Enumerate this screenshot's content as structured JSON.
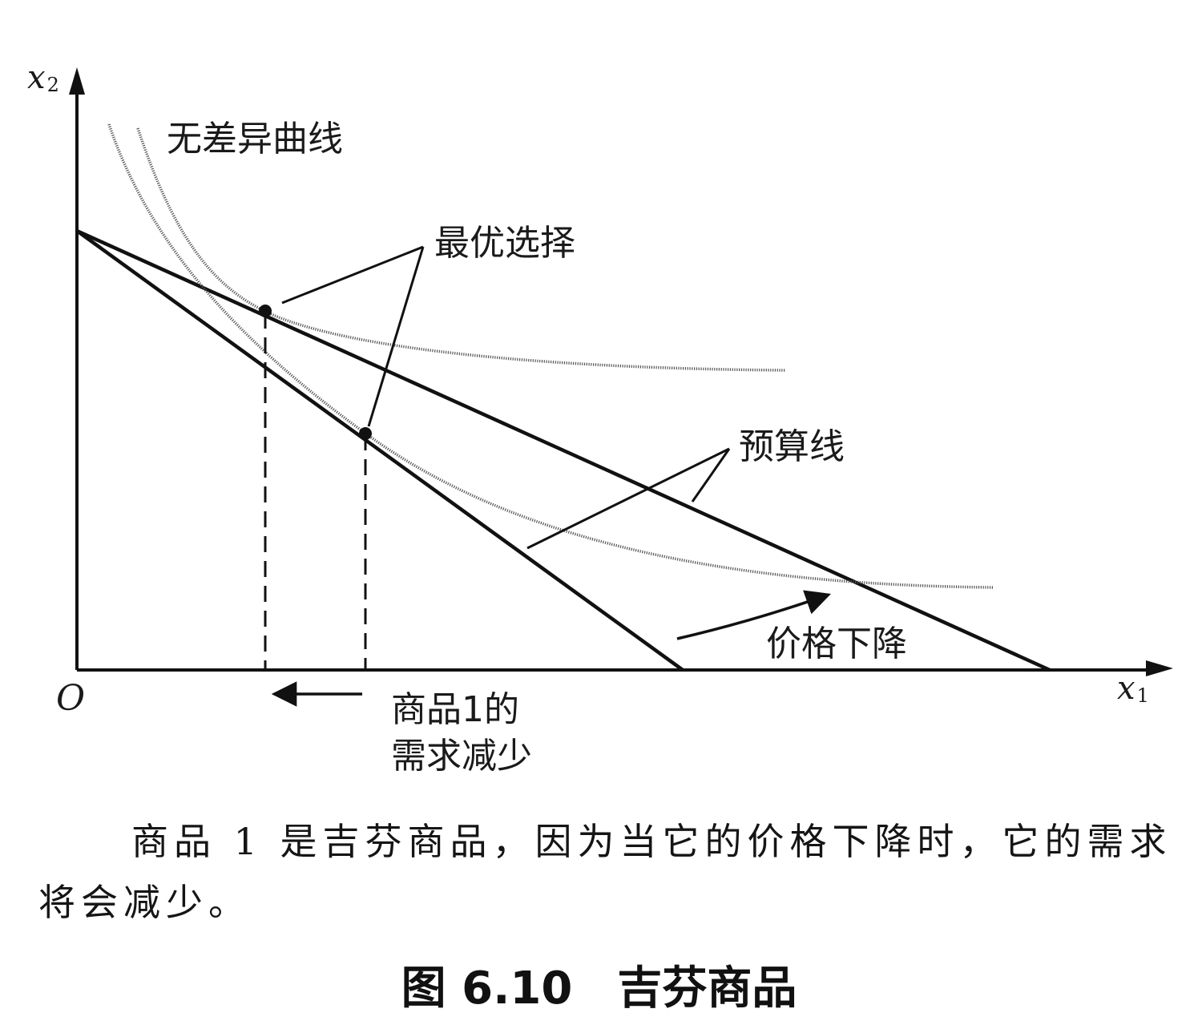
{
  "diagram": {
    "axes": {
      "y_var": "x",
      "y_sub": "2",
      "x_var": "x",
      "x_sub": "1",
      "origin": "O"
    },
    "labels": {
      "indifference_curves": "无差异曲线",
      "optimal_choice": "最优选择",
      "budget_lines": "预算线",
      "price_decrease": "价格下降",
      "demand_decrease_line1": "商品1的",
      "demand_decrease_line2": "需求减少"
    },
    "colors": {
      "ink": "#111111",
      "curve": "#555555"
    }
  },
  "caption": {
    "text": "商品 1 是吉芬商品，因为当它的价格下降时，它的需求将会减少。"
  },
  "figure_title": {
    "number": "图 6.10",
    "name": "吉芬商品"
  }
}
